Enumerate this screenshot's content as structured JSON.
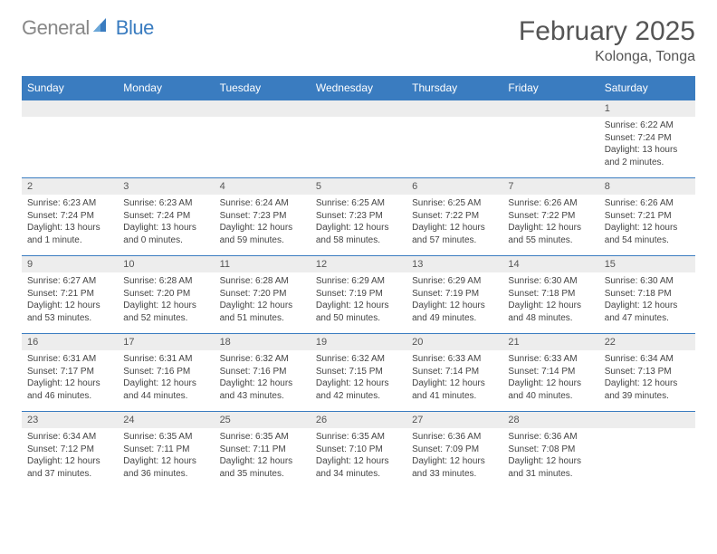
{
  "brand": {
    "part1": "General",
    "part2": "Blue"
  },
  "title": "February 2025",
  "location": "Kolonga, Tonga",
  "weekdays": [
    "Sunday",
    "Monday",
    "Tuesday",
    "Wednesday",
    "Thursday",
    "Friday",
    "Saturday"
  ],
  "colors": {
    "header_bg": "#3a7cc0",
    "header_text": "#ffffff",
    "daynum_bg": "#ededed",
    "border": "#3a7cc0",
    "text": "#444444",
    "title_text": "#555555",
    "logo_gray": "#888888"
  },
  "grid": [
    [
      {
        "n": "",
        "sunrise": "",
        "sunset": "",
        "daylight": ""
      },
      {
        "n": "",
        "sunrise": "",
        "sunset": "",
        "daylight": ""
      },
      {
        "n": "",
        "sunrise": "",
        "sunset": "",
        "daylight": ""
      },
      {
        "n": "",
        "sunrise": "",
        "sunset": "",
        "daylight": ""
      },
      {
        "n": "",
        "sunrise": "",
        "sunset": "",
        "daylight": ""
      },
      {
        "n": "",
        "sunrise": "",
        "sunset": "",
        "daylight": ""
      },
      {
        "n": "1",
        "sunrise": "Sunrise: 6:22 AM",
        "sunset": "Sunset: 7:24 PM",
        "daylight": "Daylight: 13 hours and 2 minutes."
      }
    ],
    [
      {
        "n": "2",
        "sunrise": "Sunrise: 6:23 AM",
        "sunset": "Sunset: 7:24 PM",
        "daylight": "Daylight: 13 hours and 1 minute."
      },
      {
        "n": "3",
        "sunrise": "Sunrise: 6:23 AM",
        "sunset": "Sunset: 7:24 PM",
        "daylight": "Daylight: 13 hours and 0 minutes."
      },
      {
        "n": "4",
        "sunrise": "Sunrise: 6:24 AM",
        "sunset": "Sunset: 7:23 PM",
        "daylight": "Daylight: 12 hours and 59 minutes."
      },
      {
        "n": "5",
        "sunrise": "Sunrise: 6:25 AM",
        "sunset": "Sunset: 7:23 PM",
        "daylight": "Daylight: 12 hours and 58 minutes."
      },
      {
        "n": "6",
        "sunrise": "Sunrise: 6:25 AM",
        "sunset": "Sunset: 7:22 PM",
        "daylight": "Daylight: 12 hours and 57 minutes."
      },
      {
        "n": "7",
        "sunrise": "Sunrise: 6:26 AM",
        "sunset": "Sunset: 7:22 PM",
        "daylight": "Daylight: 12 hours and 55 minutes."
      },
      {
        "n": "8",
        "sunrise": "Sunrise: 6:26 AM",
        "sunset": "Sunset: 7:21 PM",
        "daylight": "Daylight: 12 hours and 54 minutes."
      }
    ],
    [
      {
        "n": "9",
        "sunrise": "Sunrise: 6:27 AM",
        "sunset": "Sunset: 7:21 PM",
        "daylight": "Daylight: 12 hours and 53 minutes."
      },
      {
        "n": "10",
        "sunrise": "Sunrise: 6:28 AM",
        "sunset": "Sunset: 7:20 PM",
        "daylight": "Daylight: 12 hours and 52 minutes."
      },
      {
        "n": "11",
        "sunrise": "Sunrise: 6:28 AM",
        "sunset": "Sunset: 7:20 PM",
        "daylight": "Daylight: 12 hours and 51 minutes."
      },
      {
        "n": "12",
        "sunrise": "Sunrise: 6:29 AM",
        "sunset": "Sunset: 7:19 PM",
        "daylight": "Daylight: 12 hours and 50 minutes."
      },
      {
        "n": "13",
        "sunrise": "Sunrise: 6:29 AM",
        "sunset": "Sunset: 7:19 PM",
        "daylight": "Daylight: 12 hours and 49 minutes."
      },
      {
        "n": "14",
        "sunrise": "Sunrise: 6:30 AM",
        "sunset": "Sunset: 7:18 PM",
        "daylight": "Daylight: 12 hours and 48 minutes."
      },
      {
        "n": "15",
        "sunrise": "Sunrise: 6:30 AM",
        "sunset": "Sunset: 7:18 PM",
        "daylight": "Daylight: 12 hours and 47 minutes."
      }
    ],
    [
      {
        "n": "16",
        "sunrise": "Sunrise: 6:31 AM",
        "sunset": "Sunset: 7:17 PM",
        "daylight": "Daylight: 12 hours and 46 minutes."
      },
      {
        "n": "17",
        "sunrise": "Sunrise: 6:31 AM",
        "sunset": "Sunset: 7:16 PM",
        "daylight": "Daylight: 12 hours and 44 minutes."
      },
      {
        "n": "18",
        "sunrise": "Sunrise: 6:32 AM",
        "sunset": "Sunset: 7:16 PM",
        "daylight": "Daylight: 12 hours and 43 minutes."
      },
      {
        "n": "19",
        "sunrise": "Sunrise: 6:32 AM",
        "sunset": "Sunset: 7:15 PM",
        "daylight": "Daylight: 12 hours and 42 minutes."
      },
      {
        "n": "20",
        "sunrise": "Sunrise: 6:33 AM",
        "sunset": "Sunset: 7:14 PM",
        "daylight": "Daylight: 12 hours and 41 minutes."
      },
      {
        "n": "21",
        "sunrise": "Sunrise: 6:33 AM",
        "sunset": "Sunset: 7:14 PM",
        "daylight": "Daylight: 12 hours and 40 minutes."
      },
      {
        "n": "22",
        "sunrise": "Sunrise: 6:34 AM",
        "sunset": "Sunset: 7:13 PM",
        "daylight": "Daylight: 12 hours and 39 minutes."
      }
    ],
    [
      {
        "n": "23",
        "sunrise": "Sunrise: 6:34 AM",
        "sunset": "Sunset: 7:12 PM",
        "daylight": "Daylight: 12 hours and 37 minutes."
      },
      {
        "n": "24",
        "sunrise": "Sunrise: 6:35 AM",
        "sunset": "Sunset: 7:11 PM",
        "daylight": "Daylight: 12 hours and 36 minutes."
      },
      {
        "n": "25",
        "sunrise": "Sunrise: 6:35 AM",
        "sunset": "Sunset: 7:11 PM",
        "daylight": "Daylight: 12 hours and 35 minutes."
      },
      {
        "n": "26",
        "sunrise": "Sunrise: 6:35 AM",
        "sunset": "Sunset: 7:10 PM",
        "daylight": "Daylight: 12 hours and 34 minutes."
      },
      {
        "n": "27",
        "sunrise": "Sunrise: 6:36 AM",
        "sunset": "Sunset: 7:09 PM",
        "daylight": "Daylight: 12 hours and 33 minutes."
      },
      {
        "n": "28",
        "sunrise": "Sunrise: 6:36 AM",
        "sunset": "Sunset: 7:08 PM",
        "daylight": "Daylight: 12 hours and 31 minutes."
      },
      {
        "n": "",
        "sunrise": "",
        "sunset": "",
        "daylight": ""
      }
    ]
  ]
}
